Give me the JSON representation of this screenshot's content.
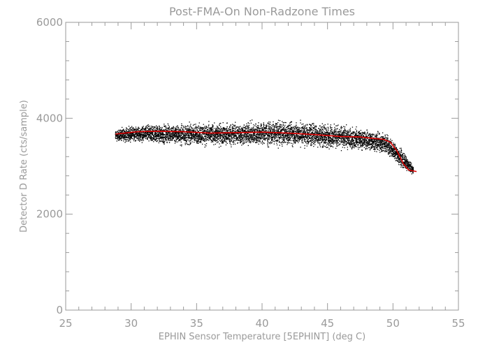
{
  "chart_data": {
    "type": "scatter",
    "title": "Post-FMA-On Non-Radzone Times",
    "xlabel": "EPHIN Sensor Temperature [5EPHINT] (deg C)",
    "ylabel": "Detector D Rate (cts/sample)",
    "xlim": [
      25,
      55
    ],
    "ylim": [
      0,
      6000
    ],
    "x_ticks": [
      25,
      30,
      35,
      40,
      45,
      50,
      55
    ],
    "y_ticks": [
      0,
      2000,
      4000,
      6000
    ],
    "grid": false,
    "colors": {
      "points": "#000000",
      "fit": "#dd0000",
      "axes": "#9a9a9a"
    },
    "scatter_columns": [
      {
        "x": 28.8,
        "low": 3500,
        "high": 3800
      },
      {
        "x": 30.0,
        "low": 3480,
        "high": 3880
      },
      {
        "x": 32.0,
        "low": 3430,
        "high": 3930
      },
      {
        "x": 34.0,
        "low": 3400,
        "high": 3950
      },
      {
        "x": 36.0,
        "low": 3380,
        "high": 3960
      },
      {
        "x": 38.0,
        "low": 3370,
        "high": 3980
      },
      {
        "x": 40.0,
        "low": 3370,
        "high": 4010
      },
      {
        "x": 42.0,
        "low": 3370,
        "high": 4020
      },
      {
        "x": 44.0,
        "low": 3340,
        "high": 3990
      },
      {
        "x": 46.0,
        "low": 3310,
        "high": 3920
      },
      {
        "x": 48.0,
        "low": 3290,
        "high": 3820
      },
      {
        "x": 49.5,
        "low": 3200,
        "high": 3750
      },
      {
        "x": 50.5,
        "low": 2950,
        "high": 3450
      },
      {
        "x": 51.5,
        "low": 2800,
        "high": 3050
      }
    ],
    "series": [
      {
        "x": [
          28.8,
          29.5,
          30.5,
          32,
          34,
          36,
          38,
          40,
          42,
          44,
          46,
          47.5,
          48.5,
          49.3,
          49.8,
          50.3,
          50.8,
          51.2,
          51.8
        ],
        "values": [
          3670,
          3690,
          3720,
          3730,
          3720,
          3690,
          3700,
          3710,
          3690,
          3660,
          3620,
          3610,
          3580,
          3560,
          3500,
          3320,
          3050,
          2920,
          2890
        ]
      }
    ]
  }
}
